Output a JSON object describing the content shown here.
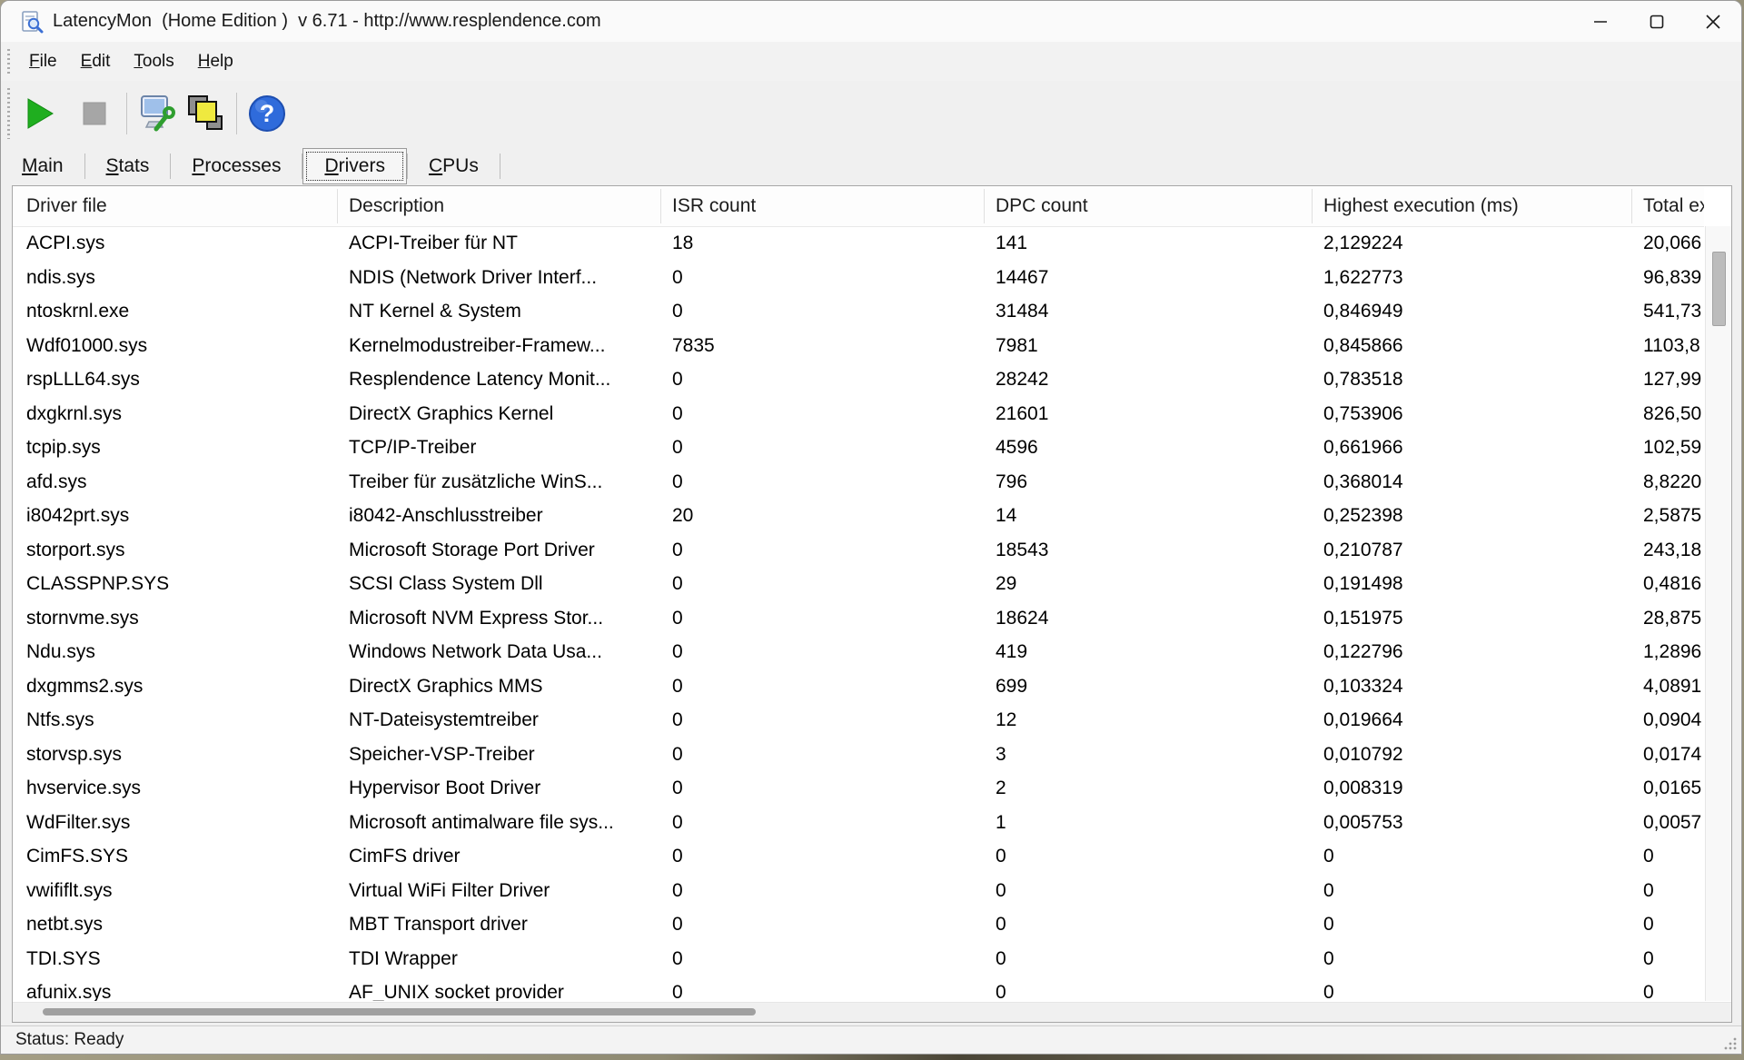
{
  "window": {
    "title": "LatencyMon  (Home Edition )  v 6.71 - http://www.resplendence.com"
  },
  "menu": {
    "items": [
      "File",
      "Edit",
      "Tools",
      "Help"
    ]
  },
  "toolbar": {
    "icons": [
      "play-icon",
      "stop-icon",
      "monitor-wrench-icon",
      "copy-icon",
      "help-icon"
    ],
    "help_glyph": "?",
    "colors": {
      "play_green": "#1fae1f",
      "stop_gray": "#a6a6a6",
      "copy_yellow": "#efe93f",
      "help_blue": "#2f6bdb"
    }
  },
  "tabs": {
    "items": [
      "Main",
      "Stats",
      "Processes",
      "Drivers",
      "CPUs"
    ],
    "selected": "Drivers"
  },
  "table": {
    "columns": [
      {
        "key": "driver_file",
        "label": "Driver file"
      },
      {
        "key": "description",
        "label": "Description"
      },
      {
        "key": "isr_count",
        "label": "ISR count"
      },
      {
        "key": "dpc_count",
        "label": "DPC count"
      },
      {
        "key": "highest_execution_ms",
        "label": "Highest execution (ms)"
      },
      {
        "key": "total_execution",
        "label": "Total ex"
      }
    ],
    "rows": [
      [
        "ACPI.sys",
        "ACPI-Treiber für NT",
        "18",
        "141",
        "2,129224",
        "20,066"
      ],
      [
        "ndis.sys",
        "NDIS (Network Driver Interf...",
        "0",
        "14467",
        "1,622773",
        "96,839"
      ],
      [
        "ntoskrnl.exe",
        "NT Kernel & System",
        "0",
        "31484",
        "0,846949",
        "541,73"
      ],
      [
        "Wdf01000.sys",
        "Kernelmodustreiber-Framew...",
        "7835",
        "7981",
        "0,845866",
        "1103,8"
      ],
      [
        "rspLLL64.sys",
        "Resplendence Latency Monit...",
        "0",
        "28242",
        "0,783518",
        "127,99"
      ],
      [
        "dxgkrnl.sys",
        "DirectX Graphics Kernel",
        "0",
        "21601",
        "0,753906",
        "826,50"
      ],
      [
        "tcpip.sys",
        "TCP/IP-Treiber",
        "0",
        "4596",
        "0,661966",
        "102,59"
      ],
      [
        "afd.sys",
        "Treiber für zusätzliche WinS...",
        "0",
        "796",
        "0,368014",
        "8,8220"
      ],
      [
        "i8042prt.sys",
        "i8042-Anschlusstreiber",
        "20",
        "14",
        "0,252398",
        "2,5875"
      ],
      [
        "storport.sys",
        "Microsoft Storage Port Driver",
        "0",
        "18543",
        "0,210787",
        "243,18"
      ],
      [
        "CLASSPNP.SYS",
        "SCSI Class System Dll",
        "0",
        "29",
        "0,191498",
        "0,4816"
      ],
      [
        "stornvme.sys",
        "Microsoft NVM Express Stor...",
        "0",
        "18624",
        "0,151975",
        "28,875"
      ],
      [
        "Ndu.sys",
        "Windows Network Data Usa...",
        "0",
        "419",
        "0,122796",
        "1,2896"
      ],
      [
        "dxgmms2.sys",
        "DirectX Graphics MMS",
        "0",
        "699",
        "0,103324",
        "4,0891"
      ],
      [
        "Ntfs.sys",
        "NT-Dateisystemtreiber",
        "0",
        "12",
        "0,019664",
        "0,0904"
      ],
      [
        "storvsp.sys",
        "Speicher-VSP-Treiber",
        "0",
        "3",
        "0,010792",
        "0,0174"
      ],
      [
        "hvservice.sys",
        "Hypervisor Boot Driver",
        "0",
        "2",
        "0,008319",
        "0,0165"
      ],
      [
        "WdFilter.sys",
        "Microsoft antimalware file sys...",
        "0",
        "1",
        "0,005753",
        "0,0057"
      ],
      [
        "CimFS.SYS",
        "CimFS driver",
        "0",
        "0",
        "0",
        "0"
      ],
      [
        "vwififlt.sys",
        "Virtual WiFi Filter Driver",
        "0",
        "0",
        "0",
        "0"
      ],
      [
        "netbt.sys",
        "MBT Transport driver",
        "0",
        "0",
        "0",
        "0"
      ],
      [
        "TDI.SYS",
        "TDI Wrapper",
        "0",
        "0",
        "0",
        "0"
      ],
      [
        "afunix.sys",
        "AF_UNIX socket provider",
        "0",
        "0",
        "0",
        "0"
      ]
    ]
  },
  "status": {
    "text": "Status: Ready"
  }
}
